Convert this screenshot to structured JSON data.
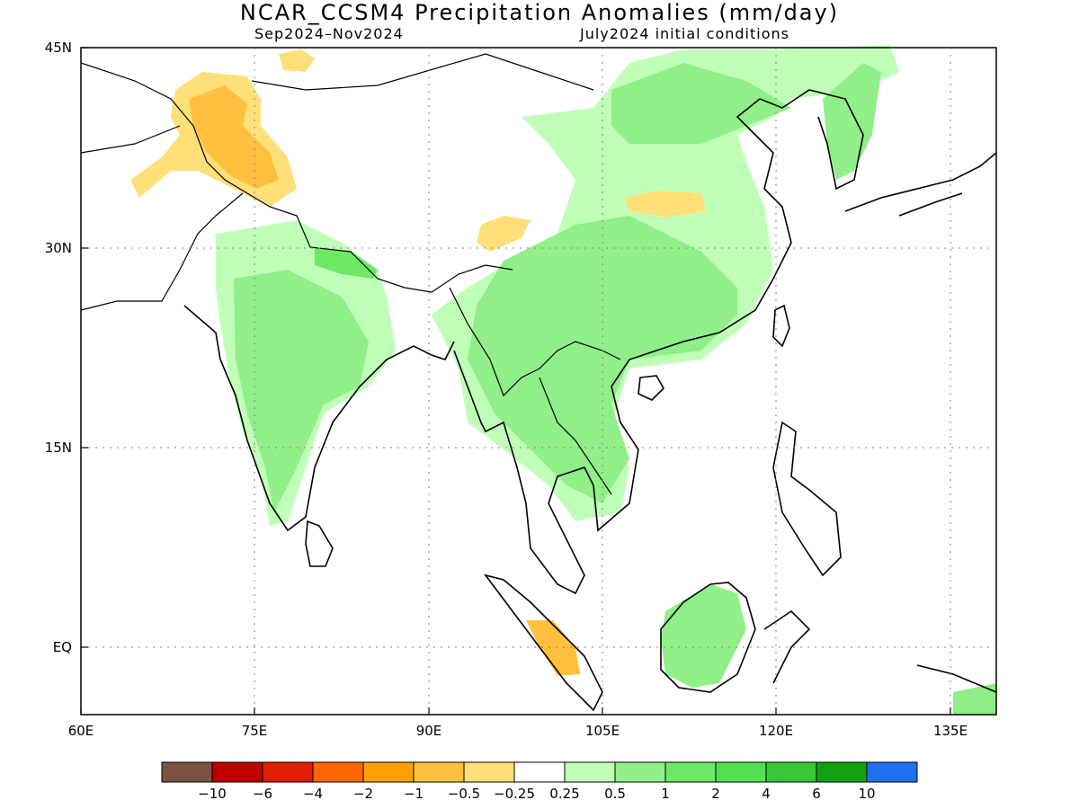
{
  "title": "NCAR_CCSM4 Precipitation Anomalies (mm/day)",
  "subtitle_left": "Sep2024–Nov2024",
  "subtitle_right": "July2024 initial conditions",
  "lon_labels": [
    "60E",
    "75E",
    "90E",
    "105E",
    "120E",
    "135E"
  ],
  "lat_labels": [
    "45N",
    "30N",
    "15N",
    "EQ"
  ],
  "legend": {
    "colors": [
      "#7b5141",
      "#c00000",
      "#e01e00",
      "#ff6600",
      "#ffa000",
      "#ffc040",
      "#ffe078",
      "#ffffff",
      "#c0ffb8",
      "#90ef88",
      "#6ce865",
      "#50e050",
      "#38c838",
      "#10a010",
      "#2070f0"
    ],
    "labels": [
      "−10",
      "−6",
      "−4",
      "−2",
      "−1",
      "−0.5",
      "−0.25",
      "0.25",
      "0.5",
      "1",
      "2",
      "4",
      "6",
      "10"
    ]
  }
}
